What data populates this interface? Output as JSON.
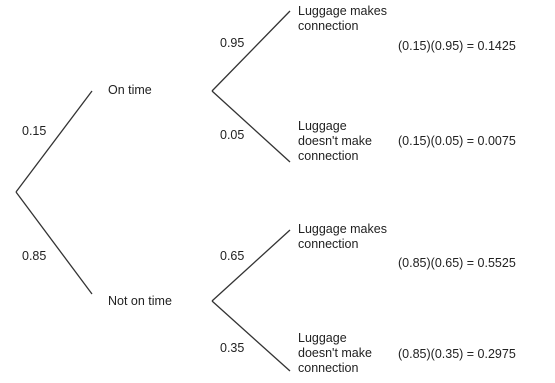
{
  "tree": {
    "first_stage": [
      {
        "label": "On time",
        "probability": "0.15"
      },
      {
        "label": "Not on time",
        "probability": "0.85"
      }
    ],
    "second_stage": [
      {
        "parent": "On time",
        "label": "Luggage makes connection",
        "probability": "0.95",
        "result": "(0.15)(0.95) = 0.1425"
      },
      {
        "parent": "On time",
        "label": "Luggage doesn't make connection",
        "probability": "0.05",
        "result": "(0.15)(0.05) = 0.0075"
      },
      {
        "parent": "Not on time",
        "label": "Luggage makes connection",
        "probability": "0.65",
        "result": "(0.85)(0.65) = 0.5525"
      },
      {
        "parent": "Not on time",
        "label": "Luggage doesn't make connection",
        "probability": "0.35",
        "result": "(0.85)(0.35) = 0.2975"
      }
    ]
  },
  "colors": {
    "line": "#333333",
    "text": "#222222"
  }
}
